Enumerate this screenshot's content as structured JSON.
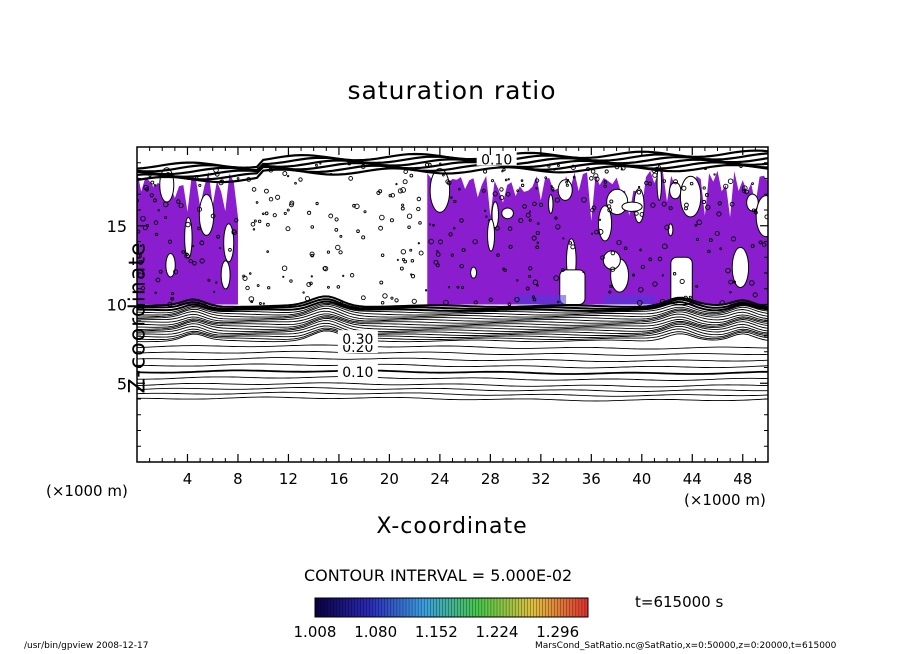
{
  "chart_data": {
    "type": "heatmap",
    "title": "saturation ratio",
    "xlabel": "X-coordinate",
    "ylabel": "Z-coordinate",
    "x_unit_note": "(×1000 m)",
    "xlim": [
      0,
      50
    ],
    "ylim": [
      0,
      20
    ],
    "x_ticks": [
      "4",
      "8",
      "12",
      "16",
      "20",
      "24",
      "28",
      "32",
      "36",
      "40",
      "44",
      "48"
    ],
    "x_tick_values": [
      4,
      8,
      12,
      16,
      20,
      24,
      28,
      32,
      36,
      40,
      44,
      48
    ],
    "y_ticks": [
      "5",
      "10",
      "15"
    ],
    "y_tick_values": [
      5,
      10,
      15
    ],
    "contour_labels": [
      {
        "text": "0.10",
        "x": 17.5,
        "z": 5.7
      },
      {
        "text": "0.20",
        "x": 17.5,
        "z": 7.3
      },
      {
        "text": "0.30",
        "x": 17.5,
        "z": 7.8
      },
      {
        "text": "0.10",
        "x": 28.5,
        "z": 19.2
      }
    ],
    "contour_interval_text": "CONTOUR INTERVAL = 5.000E-02",
    "colorbar": {
      "min": 1.008,
      "max": 1.332,
      "tick_labels": [
        "1.008",
        "1.080",
        "1.152",
        "1.224",
        "1.296"
      ],
      "colors": [
        "#0a0040",
        "#2a2ab8",
        "#3aa0e0",
        "#48c848",
        "#e0c040",
        "#e03030"
      ]
    },
    "fill_color": "#8a1ecf",
    "supersaturated_regions": [
      {
        "x": [
          0,
          8
        ],
        "z": [
          10,
          18.5
        ]
      },
      {
        "x": [
          23,
          50
        ],
        "z": [
          10,
          18.5
        ]
      }
    ],
    "clear_region": {
      "x": [
        8,
        23
      ],
      "z": [
        10,
        18.5
      ]
    }
  },
  "time_label": "t=615000 s",
  "footer": {
    "left": "/usr/bin/gpview   2008-12-17",
    "right": "MarsCond_SatRatio.nc@SatRatio,x=0:50000,z=0:20000,t=615000"
  }
}
